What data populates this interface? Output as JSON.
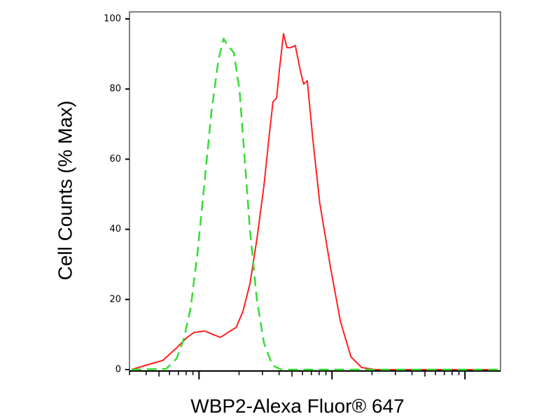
{
  "chart_data": {
    "type": "line",
    "y_label": "Cell Counts (% Max)",
    "x_label": "WBP2-Alexa Fluor® 647",
    "xscale": "log",
    "xlim": [
      3,
      1850
    ],
    "xticks": [
      10,
      100,
      1000
    ],
    "ylim": [
      0,
      102
    ],
    "yticks": [
      0,
      20,
      40,
      60,
      80,
      100
    ],
    "series": [
      {
        "color": "#ff2020",
        "dash": false,
        "x": [
          3.1,
          3.94,
          5.33,
          6.79,
          8.15,
          9.19,
          11.0,
          12.4,
          14.5,
          16.8,
          19.0,
          21.4,
          24.2,
          27.3,
          30.8,
          33.9,
          36.0,
          38.3,
          40.2,
          43.2,
          45.8,
          48.8,
          53.0,
          57.7,
          61.2,
          65.2,
          71.8,
          80.9,
          97.0,
          116,
          139,
          167,
          213,
          1766
        ],
        "values": [
          0,
          1.2,
          2.6,
          6.2,
          9.2,
          10.6,
          11,
          10.2,
          9.2,
          10.8,
          12,
          16.6,
          24.6,
          37.5,
          52.5,
          67.5,
          76.4,
          77.4,
          85.4,
          95.8,
          91.8,
          91.8,
          92.4,
          85.4,
          81.4,
          82.4,
          65.5,
          47.5,
          29.5,
          13.6,
          3.6,
          0.6,
          0,
          0
        ]
      },
      {
        "color": "#33dd33",
        "dash": true,
        "x": [
          3.1,
          5.66,
          6.79,
          7.66,
          8.65,
          9.76,
          11.0,
          12.4,
          14.0,
          15.3,
          16.4,
          17.4,
          18.3,
          20.2,
          21.9,
          24.2,
          27.3,
          30.8,
          35.6,
          41.6,
          1766
        ],
        "values": [
          0,
          0.2,
          3.2,
          8.6,
          17.6,
          33.5,
          53.5,
          73.5,
          88.4,
          94.4,
          92.4,
          91.4,
          90.3,
          79.4,
          61.5,
          39.5,
          19.6,
          7.6,
          1.2,
          0,
          0
        ]
      }
    ]
  }
}
